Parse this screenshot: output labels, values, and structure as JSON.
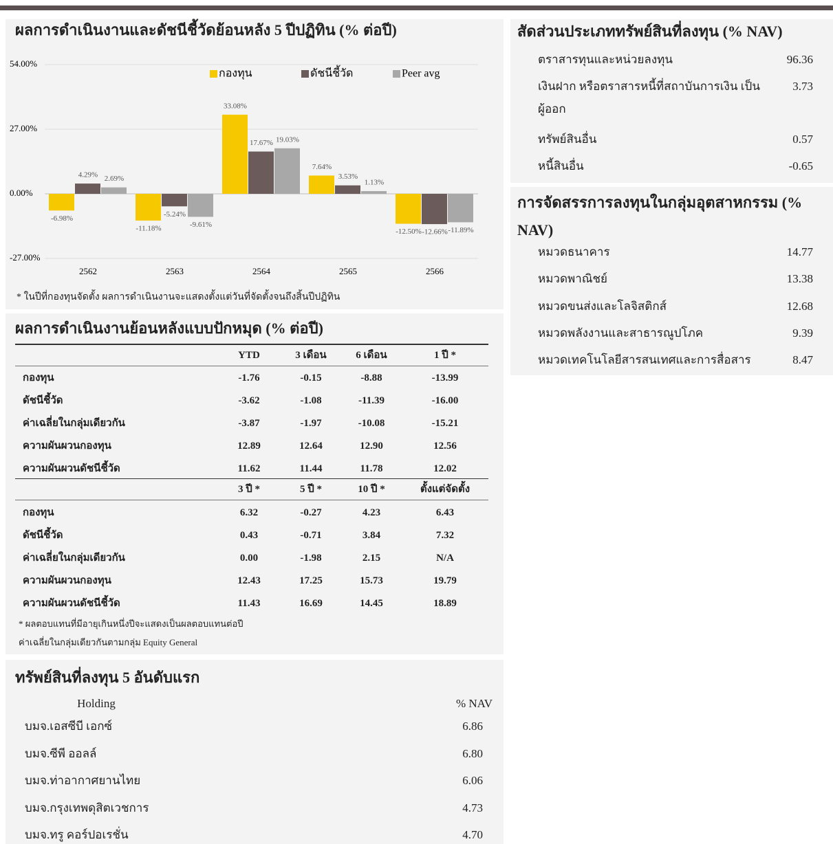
{
  "chart_data": {
    "type": "bar",
    "title": "ผลการดำเนินงานและดัชนีชี้วัดย้อนหลัง 5 ปีปฏิทิน (% ต่อปี)",
    "categories": [
      "2562",
      "2563",
      "2564",
      "2565",
      "2566"
    ],
    "series": [
      {
        "name": "กองทุน",
        "color": "#f5c800",
        "values": [
          -6.98,
          -11.18,
          33.08,
          7.64,
          -12.5
        ],
        "value_labels": [
          "-6.98%",
          "-11.18%",
          "33.08%",
          "7.64%",
          "-12.50%"
        ]
      },
      {
        "name": "ดัชนีชี้วัด",
        "color": "#6b5b5b",
        "values": [
          4.29,
          -5.24,
          17.67,
          3.53,
          -12.66
        ],
        "value_labels": [
          "4.29%",
          "-5.24%",
          "17.67%",
          "3.53%",
          "-12.66%"
        ]
      },
      {
        "name": "Peer avg",
        "color": "#a8a8a8",
        "values": [
          2.69,
          -9.61,
          19.03,
          1.13,
          -11.89
        ],
        "value_labels": [
          "2.69%",
          "-9.61%",
          "19.03%",
          "1.13%",
          "-11.89%"
        ]
      }
    ],
    "ylim": [
      -27,
      54
    ],
    "yticks": [
      {
        "value": -27,
        "label": "-27.00%"
      },
      {
        "value": 0,
        "label": "0.00%"
      },
      {
        "value": 27,
        "label": "27.00%"
      },
      {
        "value": 54,
        "label": "54.00%"
      }
    ],
    "grid": true,
    "legend": "top",
    "footnote": "* ในปีที่กองทุนจัดตั้ง ผลการดำเนินงานจะแสดงตั้งแต่วันที่จัดตั้งจนถึงสิ้นปีปฏิทิน"
  },
  "trailing": {
    "title": "ผลการดำเนินงานย้อนหลังแบบปักหมุด (% ต่อปี)",
    "headers1": [
      "YTD",
      "3 เดือน",
      "6 เดือน",
      "1 ปี *"
    ],
    "rows1": [
      {
        "label": "กองทุน",
        "values": [
          "-1.76",
          "-0.15",
          "-8.88",
          "-13.99"
        ]
      },
      {
        "label": "ดัชนีชี้วัด",
        "values": [
          "-3.62",
          "-1.08",
          "-11.39",
          "-16.00"
        ]
      },
      {
        "label": "ค่าเฉลี่ยในกลุ่มเดียวกัน",
        "values": [
          "-3.87",
          "-1.97",
          "-10.08",
          "-15.21"
        ]
      },
      {
        "label": "ความผันผวนกองทุน",
        "values": [
          "12.89",
          "12.64",
          "12.90",
          "12.56"
        ]
      },
      {
        "label": "ความผันผวนดัชนีชี้วัด",
        "values": [
          "11.62",
          "11.44",
          "11.78",
          "12.02"
        ]
      }
    ],
    "headers2": [
      "3 ปี *",
      "5 ปี *",
      "10 ปี *",
      "ตั้งแต่จัดตั้ง"
    ],
    "rows2": [
      {
        "label": "กองทุน",
        "values": [
          "6.32",
          "-0.27",
          "4.23",
          "6.43"
        ]
      },
      {
        "label": "ดัชนีชี้วัด",
        "values": [
          "0.43",
          "-0.71",
          "3.84",
          "7.32"
        ]
      },
      {
        "label": "ค่าเฉลี่ยในกลุ่มเดียวกัน",
        "values": [
          "0.00",
          "-1.98",
          "2.15",
          "N/A"
        ]
      },
      {
        "label": "ความผันผวนกองทุน",
        "values": [
          "12.43",
          "17.25",
          "15.73",
          "19.79"
        ]
      },
      {
        "label": "ความผันผวนดัชนีชี้วัด",
        "values": [
          "11.43",
          "16.69",
          "14.45",
          "18.89"
        ]
      }
    ],
    "notes": [
      "* ผลตอบแทนที่มีอายุเกินหนึ่งปีจะแสดงเป็นผลตอบแทนต่อปี",
      "ค่าเฉลี่ยในกลุ่มเดียวกันตามกลุ่ม Equity General"
    ]
  },
  "holdings": {
    "title": "ทรัพย์สินที่ลงทุน 5 อันดับแรก",
    "header": [
      "Holding",
      "% NAV"
    ],
    "rows": [
      [
        "บมจ.เอสซีบี เอกซ์",
        "6.86"
      ],
      [
        "บมจ.ซีพี ออลล์",
        "6.80"
      ],
      [
        "บมจ.ท่าอากาศยานไทย",
        "6.06"
      ],
      [
        "บมจ.กรุงเทพดุสิตเวชการ",
        "4.73"
      ],
      [
        "บมจ.ทรู คอร์ปอเรชั่น",
        "4.70"
      ]
    ]
  },
  "asset_alloc": {
    "title": "สัดส่วนประเภททรัพย์สินที่ลงทุน (% NAV)",
    "rows": [
      [
        "ตราสารทุนและหน่วยลงทุน",
        "96.36"
      ],
      [
        "เงินฝาก หรือตราสารหนี้ที่สถาบันการเงิน เป็นผู้ออก",
        "3.73"
      ],
      [
        "ทรัพย์สินอื่น",
        "0.57"
      ],
      [
        "หนี้สินอื่น",
        "-0.65"
      ]
    ]
  },
  "industry": {
    "title": "การจัดสรรการลงทุนในกลุ่มอุตสาหกรรม (% NAV)",
    "rows": [
      [
        "หมวดธนาคาร",
        "14.77"
      ],
      [
        "หมวดพาณิชย์",
        "13.38"
      ],
      [
        "หมวดขนส่งและโลจิสติกส์",
        "12.68"
      ],
      [
        "หมวดพลังงานและสาธารณูปโภค",
        "9.39"
      ],
      [
        "หมวดเทคโนโลยีสารสนเทศและการสื่อสาร",
        "8.47"
      ]
    ]
  }
}
